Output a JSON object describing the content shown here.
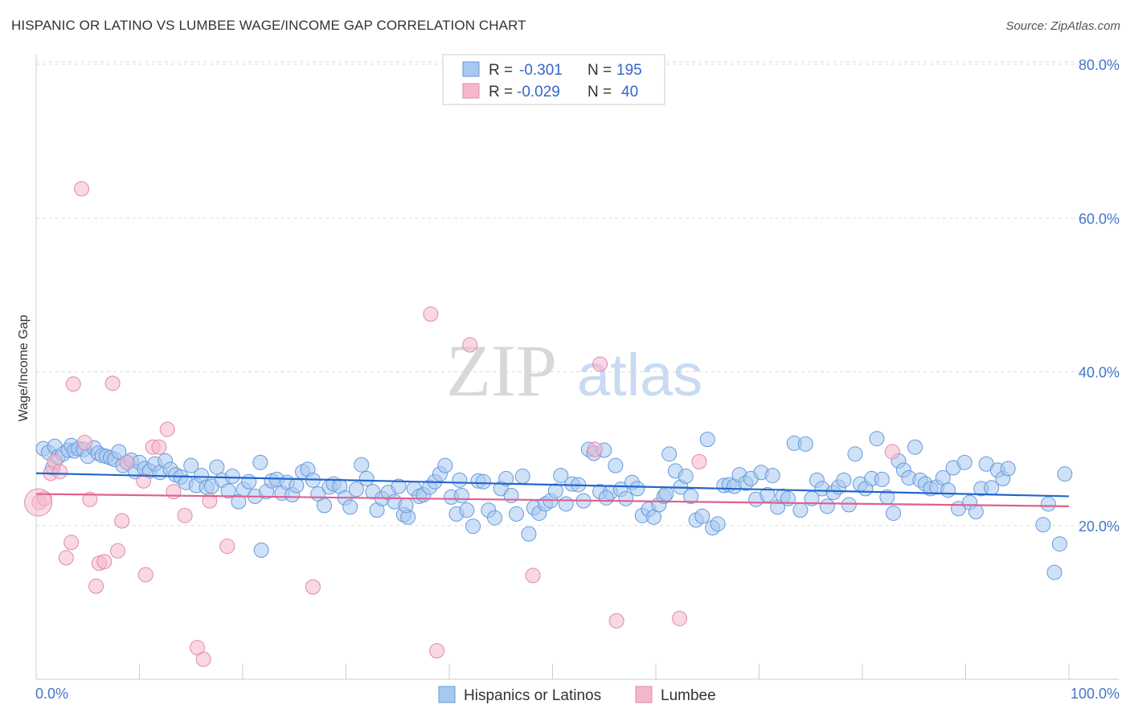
{
  "title": "HISPANIC OR LATINO VS LUMBEE WAGE/INCOME GAP CORRELATION CHART",
  "source": "Source: ZipAtlas.com",
  "watermark": {
    "zip": "ZIP",
    "atlas": "atlas"
  },
  "chart_data": {
    "type": "scatter",
    "ylabel": "Wage/Income Gap",
    "xlabel": "",
    "xlim": [
      0,
      100
    ],
    "ylim": [
      0,
      80
    ],
    "x_tick_labels": [
      "0.0%",
      "100.0%"
    ],
    "y_ticks": [
      20,
      40,
      60,
      80
    ],
    "y_tick_labels": [
      "20.0%",
      "40.0%",
      "60.0%",
      "80.0%"
    ],
    "grid": "horizontal dashed",
    "legend_position": "top-center",
    "legend": [
      {
        "r_label": "R =",
        "r": "-0.301",
        "n_label": "N =",
        "n": "195"
      },
      {
        "r_label": "R =",
        "r": "-0.029",
        "n_label": "N =",
        "n": "40"
      }
    ],
    "series": [
      {
        "name": "Hispanics or Latinos",
        "color": "#a8c8f0",
        "edge": "#6699dd",
        "trend_color": "#2266cc",
        "trend": [
          [
            0,
            26.8
          ],
          [
            100,
            23.8
          ]
        ],
        "points": [
          [
            0.7,
            30.0
          ],
          [
            1.2,
            29.5
          ],
          [
            1.6,
            27.5
          ],
          [
            1.8,
            30.3
          ],
          [
            2.1,
            28.9
          ],
          [
            2.6,
            29.3
          ],
          [
            3.1,
            29.8
          ],
          [
            3.4,
            30.4
          ],
          [
            3.7,
            29.7
          ],
          [
            4.1,
            30.0
          ],
          [
            4.6,
            29.9
          ],
          [
            5.0,
            29.0
          ],
          [
            5.6,
            30.1
          ],
          [
            6.0,
            29.4
          ],
          [
            6.4,
            29.1
          ],
          [
            6.8,
            29.0
          ],
          [
            7.2,
            28.8
          ],
          [
            7.6,
            28.6
          ],
          [
            8.0,
            29.6
          ],
          [
            8.4,
            27.8
          ],
          [
            8.8,
            28.2
          ],
          [
            9.2,
            28.5
          ],
          [
            9.6,
            27.0
          ],
          [
            10.0,
            28.2
          ],
          [
            10.5,
            27.4
          ],
          [
            11.0,
            27.1
          ],
          [
            11.5,
            28.0
          ],
          [
            12.0,
            26.9
          ],
          [
            12.5,
            28.4
          ],
          [
            13.0,
            27.3
          ],
          [
            13.5,
            26.6
          ],
          [
            14.0,
            26.3
          ],
          [
            14.5,
            25.6
          ],
          [
            15.0,
            27.8
          ],
          [
            15.5,
            25.2
          ],
          [
            16.0,
            26.5
          ],
          [
            16.5,
            25.0
          ],
          [
            17.0,
            25.1
          ],
          [
            17.5,
            27.6
          ],
          [
            18.0,
            25.9
          ],
          [
            18.6,
            24.5
          ],
          [
            19.0,
            26.4
          ],
          [
            19.6,
            23.1
          ],
          [
            20.1,
            24.7
          ],
          [
            20.6,
            25.7
          ],
          [
            21.2,
            23.8
          ],
          [
            21.7,
            28.2
          ],
          [
            22.3,
            24.4
          ],
          [
            22.8,
            25.8
          ],
          [
            23.3,
            26.0
          ],
          [
            23.8,
            24.2
          ],
          [
            24.3,
            25.6
          ],
          [
            24.8,
            24.0
          ],
          [
            25.2,
            25.2
          ],
          [
            25.8,
            27.0
          ],
          [
            26.3,
            27.3
          ],
          [
            26.8,
            25.9
          ],
          [
            27.3,
            24.1
          ],
          [
            27.9,
            22.6
          ],
          [
            28.4,
            25.0
          ],
          [
            28.8,
            25.4
          ],
          [
            29.4,
            25.1
          ],
          [
            29.9,
            23.6
          ],
          [
            30.4,
            22.4
          ],
          [
            31.0,
            24.7
          ],
          [
            31.5,
            27.9
          ],
          [
            32.0,
            26.1
          ],
          [
            32.6,
            24.4
          ],
          [
            33.0,
            22.0
          ],
          [
            33.5,
            23.5
          ],
          [
            34.1,
            24.3
          ],
          [
            34.7,
            23.1
          ],
          [
            35.1,
            25.1
          ],
          [
            35.6,
            21.4
          ],
          [
            36.0,
            21.1
          ],
          [
            36.6,
            24.8
          ],
          [
            37.1,
            23.8
          ],
          [
            37.5,
            24.0
          ],
          [
            38.1,
            25.0
          ],
          [
            38.6,
            25.7
          ],
          [
            39.1,
            26.7
          ],
          [
            39.6,
            27.8
          ],
          [
            40.2,
            23.7
          ],
          [
            40.7,
            21.5
          ],
          [
            41.2,
            23.9
          ],
          [
            41.7,
            22.0
          ],
          [
            42.3,
            19.9
          ],
          [
            42.8,
            25.8
          ],
          [
            43.3,
            25.7
          ],
          [
            43.8,
            22.0
          ],
          [
            44.4,
            21.0
          ],
          [
            45.0,
            24.8
          ],
          [
            45.5,
            26.1
          ],
          [
            46.0,
            23.9
          ],
          [
            46.5,
            21.5
          ],
          [
            47.1,
            26.4
          ],
          [
            47.7,
            18.9
          ],
          [
            48.2,
            22.3
          ],
          [
            48.7,
            21.6
          ],
          [
            49.3,
            22.8
          ],
          [
            49.8,
            23.2
          ],
          [
            50.3,
            24.5
          ],
          [
            50.8,
            26.5
          ],
          [
            51.3,
            22.8
          ],
          [
            51.9,
            25.4
          ],
          [
            52.5,
            25.3
          ],
          [
            53.0,
            23.2
          ],
          [
            53.5,
            29.9
          ],
          [
            54.0,
            29.4
          ],
          [
            54.6,
            24.4
          ],
          [
            55.0,
            29.8
          ],
          [
            55.6,
            24.3
          ],
          [
            56.1,
            27.8
          ],
          [
            56.6,
            24.7
          ],
          [
            57.1,
            23.5
          ],
          [
            57.7,
            25.6
          ],
          [
            58.2,
            24.8
          ],
          [
            58.7,
            21.3
          ],
          [
            59.3,
            22.1
          ],
          [
            59.8,
            21.1
          ],
          [
            60.3,
            22.7
          ],
          [
            60.8,
            23.8
          ],
          [
            61.3,
            29.3
          ],
          [
            61.9,
            27.1
          ],
          [
            62.4,
            25.0
          ],
          [
            62.9,
            26.4
          ],
          [
            63.4,
            23.8
          ],
          [
            63.9,
            20.7
          ],
          [
            64.5,
            21.2
          ],
          [
            65.0,
            31.2
          ],
          [
            65.5,
            19.7
          ],
          [
            66.0,
            20.2
          ],
          [
            66.6,
            25.2
          ],
          [
            67.1,
            25.3
          ],
          [
            67.6,
            25.1
          ],
          [
            68.1,
            26.6
          ],
          [
            68.7,
            25.5
          ],
          [
            69.2,
            26.1
          ],
          [
            69.7,
            23.4
          ],
          [
            70.2,
            26.9
          ],
          [
            70.8,
            24.0
          ],
          [
            71.3,
            26.5
          ],
          [
            71.8,
            22.4
          ],
          [
            72.3,
            23.8
          ],
          [
            72.8,
            23.5
          ],
          [
            73.4,
            30.7
          ],
          [
            74.0,
            22.0
          ],
          [
            74.5,
            30.6
          ],
          [
            75.1,
            23.5
          ],
          [
            75.6,
            25.9
          ],
          [
            76.1,
            24.8
          ],
          [
            76.6,
            22.5
          ],
          [
            77.2,
            24.3
          ],
          [
            77.7,
            25.0
          ],
          [
            78.2,
            25.9
          ],
          [
            78.7,
            22.7
          ],
          [
            79.3,
            29.3
          ],
          [
            79.8,
            25.4
          ],
          [
            80.3,
            24.8
          ],
          [
            80.9,
            26.1
          ],
          [
            81.4,
            31.3
          ],
          [
            81.9,
            26.0
          ],
          [
            82.4,
            23.7
          ],
          [
            83.0,
            21.6
          ],
          [
            83.5,
            28.4
          ],
          [
            84.0,
            27.2
          ],
          [
            84.5,
            26.2
          ],
          [
            85.1,
            30.2
          ],
          [
            85.6,
            25.9
          ],
          [
            86.1,
            25.4
          ],
          [
            86.6,
            24.8
          ],
          [
            87.2,
            25.0
          ],
          [
            87.8,
            26.2
          ],
          [
            88.3,
            24.6
          ],
          [
            88.8,
            27.5
          ],
          [
            89.3,
            22.2
          ],
          [
            89.9,
            28.2
          ],
          [
            90.4,
            23.0
          ],
          [
            91.0,
            21.8
          ],
          [
            91.5,
            24.8
          ],
          [
            92.0,
            28.0
          ],
          [
            92.5,
            24.9
          ],
          [
            93.1,
            27.2
          ],
          [
            93.6,
            26.1
          ],
          [
            94.1,
            27.4
          ],
          [
            97.5,
            20.1
          ],
          [
            98.0,
            22.8
          ],
          [
            98.6,
            13.9
          ],
          [
            99.1,
            17.6
          ],
          [
            99.6,
            26.7
          ],
          [
            21.8,
            16.8
          ],
          [
            41.0,
            25.9
          ],
          [
            61.0,
            24.1
          ],
          [
            35.8,
            22.6
          ],
          [
            55.2,
            23.6
          ]
        ]
      },
      {
        "name": "Lumbee",
        "color": "#f4b8cc",
        "edge": "#e08aa6",
        "trend_color": "#e06090",
        "trend": [
          [
            0,
            24.1
          ],
          [
            100,
            22.5
          ]
        ],
        "points": [
          [
            0.3,
            23.0
          ],
          [
            0.8,
            23.5
          ],
          [
            1.4,
            26.8
          ],
          [
            1.8,
            28.3
          ],
          [
            2.3,
            27.0
          ],
          [
            2.9,
            15.8
          ],
          [
            3.4,
            17.8
          ],
          [
            3.6,
            38.4
          ],
          [
            4.4,
            63.8
          ],
          [
            4.7,
            30.8
          ],
          [
            5.2,
            23.4
          ],
          [
            5.8,
            12.1
          ],
          [
            6.1,
            15.1
          ],
          [
            6.6,
            15.3
          ],
          [
            7.4,
            38.5
          ],
          [
            7.9,
            16.7
          ],
          [
            8.3,
            20.6
          ],
          [
            8.8,
            28.2
          ],
          [
            10.4,
            25.8
          ],
          [
            10.6,
            13.6
          ],
          [
            11.3,
            30.2
          ],
          [
            11.9,
            30.2
          ],
          [
            12.7,
            32.5
          ],
          [
            13.3,
            24.4
          ],
          [
            14.4,
            21.3
          ],
          [
            15.6,
            4.1
          ],
          [
            16.2,
            2.6
          ],
          [
            16.8,
            23.2
          ],
          [
            18.5,
            17.3
          ],
          [
            26.8,
            12.0
          ],
          [
            38.2,
            47.5
          ],
          [
            38.8,
            3.7
          ],
          [
            42.0,
            43.5
          ],
          [
            48.1,
            13.5
          ],
          [
            54.1,
            29.9
          ],
          [
            54.6,
            41.0
          ],
          [
            56.2,
            7.6
          ],
          [
            62.3,
            7.9
          ],
          [
            64.2,
            28.3
          ],
          [
            82.9,
            29.6
          ]
        ]
      }
    ]
  }
}
